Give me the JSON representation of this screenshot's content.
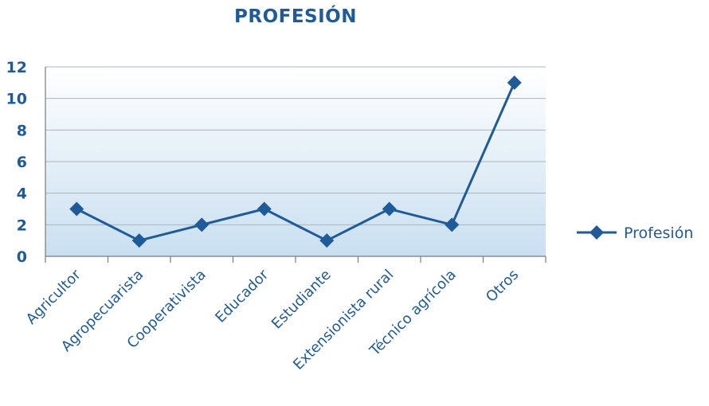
{
  "chart_data": {
    "type": "line",
    "title": "PROFESIÓN",
    "categories": [
      "Agricultor",
      "Agropecuarista",
      "Cooperativista",
      "Educador",
      "Estudiante",
      "Extensionista rural",
      "Técnico agrícola",
      "Otros"
    ],
    "series": [
      {
        "name": "Profesión",
        "values": [
          3,
          1,
          2,
          3,
          1,
          3,
          2,
          11
        ]
      }
    ],
    "yticks": [
      "0",
      "2",
      "4",
      "6",
      "8",
      "10",
      "12"
    ],
    "ylim": [
      0,
      12
    ],
    "grid": true,
    "legend_position": "right",
    "colors": {
      "line": "#1f5a99",
      "text": "#1f5a99",
      "grid": "#a8b4c0",
      "axis": "#7a7a7a",
      "fill_top": "#ffffff",
      "fill_bottom": "#c9dff0"
    }
  }
}
